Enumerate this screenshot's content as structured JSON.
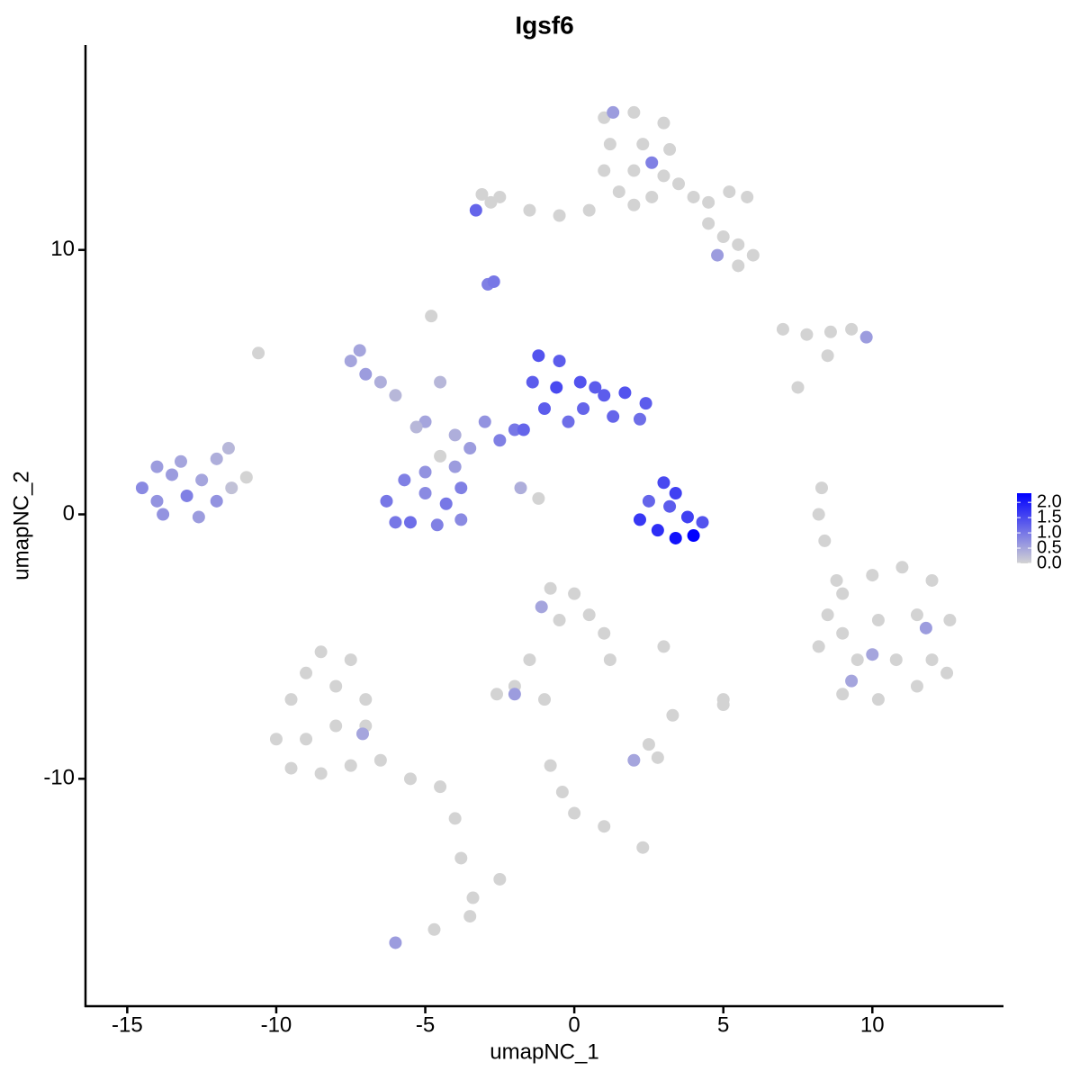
{
  "chart_data": {
    "type": "scatter",
    "title": "Igsf6",
    "x_label": "umapNC_1",
    "y_label": "umapNC_2",
    "xlim": [
      -16.4,
      14.4
    ],
    "ylim": [
      -18.6,
      17.75
    ],
    "xticks": [
      -15,
      -10,
      -5,
      0,
      5,
      10
    ],
    "yticks": [
      -10,
      0,
      10
    ],
    "color_low": "#d3d3d3",
    "color_high": "#0000ff",
    "color_lim": [
      0,
      2.3
    ],
    "colorbar_ticks": [
      {
        "value": 0,
        "label": "0.0"
      },
      {
        "value": 0.5,
        "label": "0.5"
      },
      {
        "value": 1,
        "label": "1.0"
      },
      {
        "value": 1.5,
        "label": "1.5"
      },
      {
        "value": 2,
        "label": "2.0"
      }
    ],
    "points": [
      {
        "x": 1,
        "y": 15,
        "expression": 0
      },
      {
        "x": 2,
        "y": 15.2,
        "expression": 0
      },
      {
        "x": 3,
        "y": 14.8,
        "expression": 0
      },
      {
        "x": 1.2,
        "y": 14,
        "expression": 0
      },
      {
        "x": 2.3,
        "y": 14,
        "expression": 0
      },
      {
        "x": 3.2,
        "y": 13.8,
        "expression": 0
      },
      {
        "x": 1,
        "y": 13,
        "expression": 0
      },
      {
        "x": 2,
        "y": 13,
        "expression": 0
      },
      {
        "x": 3,
        "y": 12.8,
        "expression": 0
      },
      {
        "x": 1.5,
        "y": 12.2,
        "expression": 0
      },
      {
        "x": 2.6,
        "y": 12,
        "expression": 0
      },
      {
        "x": 3.5,
        "y": 12.5,
        "expression": 0
      },
      {
        "x": 4,
        "y": 12,
        "expression": 0
      },
      {
        "x": 4.5,
        "y": 11.8,
        "expression": 0
      },
      {
        "x": 5.2,
        "y": 12.2,
        "expression": 0
      },
      {
        "x": 5.8,
        "y": 12,
        "expression": 0
      },
      {
        "x": 4.5,
        "y": 11,
        "expression": 0
      },
      {
        "x": 5,
        "y": 10.5,
        "expression": 0
      },
      {
        "x": 5.5,
        "y": 10.2,
        "expression": 0
      },
      {
        "x": 6,
        "y": 9.8,
        "expression": 0
      },
      {
        "x": 5.5,
        "y": 9.4,
        "expression": 0
      },
      {
        "x": 0.5,
        "y": 11.5,
        "expression": 0
      },
      {
        "x": -0.5,
        "y": 11.3,
        "expression": 0
      },
      {
        "x": -1.5,
        "y": 11.5,
        "expression": 0
      },
      {
        "x": -2.5,
        "y": 12,
        "expression": 0
      },
      {
        "x": -2.8,
        "y": 11.8,
        "expression": 0
      },
      {
        "x": -3.1,
        "y": 12.1,
        "expression": 0
      },
      {
        "x": 2,
        "y": 11.7,
        "expression": 0
      },
      {
        "x": 1.3,
        "y": 15.2,
        "expression": 0.6
      },
      {
        "x": 2.6,
        "y": 13.3,
        "expression": 0.9
      },
      {
        "x": 4.8,
        "y": 9.8,
        "expression": 0.6
      },
      {
        "x": -3.3,
        "y": 11.5,
        "expression": 1.2
      },
      {
        "x": -2.9,
        "y": 8.7,
        "expression": 0.9
      },
      {
        "x": -2.7,
        "y": 8.8,
        "expression": 1
      },
      {
        "x": 7,
        "y": 7,
        "expression": 0
      },
      {
        "x": 7.8,
        "y": 6.8,
        "expression": 0
      },
      {
        "x": 8.6,
        "y": 6.9,
        "expression": 0
      },
      {
        "x": 9.3,
        "y": 7,
        "expression": 0
      },
      {
        "x": 9.8,
        "y": 6.7,
        "expression": 0.6
      },
      {
        "x": 8.5,
        "y": 6,
        "expression": 0
      },
      {
        "x": 7.5,
        "y": 4.8,
        "expression": 0
      },
      {
        "x": 9,
        "y": -3,
        "expression": 0
      },
      {
        "x": 10,
        "y": -2.3,
        "expression": 0
      },
      {
        "x": 11,
        "y": -2,
        "expression": 0
      },
      {
        "x": 12,
        "y": -2.5,
        "expression": 0
      },
      {
        "x": 9,
        "y": -4.5,
        "expression": 0
      },
      {
        "x": 10.2,
        "y": -4,
        "expression": 0
      },
      {
        "x": 11.5,
        "y": -3.8,
        "expression": 0
      },
      {
        "x": 12.6,
        "y": -4,
        "expression": 0
      },
      {
        "x": 8.2,
        "y": -5,
        "expression": 0
      },
      {
        "x": 9.5,
        "y": -5.5,
        "expression": 0
      },
      {
        "x": 10.8,
        "y": -5.5,
        "expression": 0
      },
      {
        "x": 12,
        "y": -5.5,
        "expression": 0
      },
      {
        "x": 9,
        "y": -6.8,
        "expression": 0
      },
      {
        "x": 10.2,
        "y": -7,
        "expression": 0
      },
      {
        "x": 11.5,
        "y": -6.5,
        "expression": 0
      },
      {
        "x": 12.5,
        "y": -6,
        "expression": 0
      },
      {
        "x": 8.5,
        "y": -3.8,
        "expression": 0
      },
      {
        "x": 8.3,
        "y": 1,
        "expression": 0
      },
      {
        "x": 8.2,
        "y": 0,
        "expression": 0
      },
      {
        "x": 8.4,
        "y": -1,
        "expression": 0
      },
      {
        "x": 8.8,
        "y": -2.5,
        "expression": 0
      },
      {
        "x": 11.8,
        "y": -4.3,
        "expression": 0.6
      },
      {
        "x": 10,
        "y": -5.3,
        "expression": 0.5
      },
      {
        "x": 9.3,
        "y": -6.3,
        "expression": 0.5
      },
      {
        "x": -0.8,
        "y": -2.8,
        "expression": 0
      },
      {
        "x": 0,
        "y": -3,
        "expression": 0
      },
      {
        "x": 0.5,
        "y": -3.8,
        "expression": 0
      },
      {
        "x": 1,
        "y": -4.5,
        "expression": 0
      },
      {
        "x": 1.2,
        "y": -5.5,
        "expression": 0
      },
      {
        "x": -0.5,
        "y": -4,
        "expression": 0
      },
      {
        "x": -1.5,
        "y": -5.5,
        "expression": 0
      },
      {
        "x": -2,
        "y": -6.5,
        "expression": 0
      },
      {
        "x": -2.6,
        "y": -6.8,
        "expression": 0
      },
      {
        "x": 3,
        "y": -5,
        "expression": 0
      },
      {
        "x": 5,
        "y": -7,
        "expression": 0
      },
      {
        "x": -1,
        "y": -7,
        "expression": 0
      },
      {
        "x": -1.1,
        "y": -3.5,
        "expression": 0.5
      },
      {
        "x": -2,
        "y": -6.8,
        "expression": 0.6
      },
      {
        "x": 2.8,
        "y": -9.2,
        "expression": 0
      },
      {
        "x": 2.5,
        "y": -8.7,
        "expression": 0
      },
      {
        "x": 3.3,
        "y": -7.6,
        "expression": 0
      },
      {
        "x": 2,
        "y": -9.3,
        "expression": 0.5
      },
      {
        "x": -0.8,
        "y": -9.5,
        "expression": 0
      },
      {
        "x": -0.4,
        "y": -10.5,
        "expression": 0
      },
      {
        "x": 0,
        "y": -11.3,
        "expression": 0
      },
      {
        "x": 1,
        "y": -11.8,
        "expression": 0
      },
      {
        "x": 2.3,
        "y": -12.6,
        "expression": 0
      },
      {
        "x": 5,
        "y": -7.2,
        "expression": 0
      },
      {
        "x": -10,
        "y": -8.5,
        "expression": 0
      },
      {
        "x": -9.5,
        "y": -7,
        "expression": 0
      },
      {
        "x": -9,
        "y": -6,
        "expression": 0
      },
      {
        "x": -8.5,
        "y": -5.2,
        "expression": 0
      },
      {
        "x": -8,
        "y": -6.5,
        "expression": 0
      },
      {
        "x": -7.5,
        "y": -5.5,
        "expression": 0
      },
      {
        "x": -9,
        "y": -8.5,
        "expression": 0
      },
      {
        "x": -8,
        "y": -8,
        "expression": 0
      },
      {
        "x": -7,
        "y": -8,
        "expression": 0
      },
      {
        "x": -9.5,
        "y": -9.6,
        "expression": 0
      },
      {
        "x": -8.5,
        "y": -9.8,
        "expression": 0
      },
      {
        "x": -7.5,
        "y": -9.5,
        "expression": 0
      },
      {
        "x": -6.5,
        "y": -9.3,
        "expression": 0
      },
      {
        "x": -5.5,
        "y": -10,
        "expression": 0
      },
      {
        "x": -4.5,
        "y": -10.3,
        "expression": 0
      },
      {
        "x": -7,
        "y": -7,
        "expression": 0
      },
      {
        "x": -4,
        "y": -11.5,
        "expression": 0
      },
      {
        "x": -3.8,
        "y": -13,
        "expression": 0
      },
      {
        "x": -3.4,
        "y": -14.5,
        "expression": 0
      },
      {
        "x": -3.5,
        "y": -15.2,
        "expression": 0
      },
      {
        "x": -4.7,
        "y": -15.7,
        "expression": 0
      },
      {
        "x": -10.6,
        "y": 6.1,
        "expression": 0
      },
      {
        "x": -2.5,
        "y": -13.8,
        "expression": 0
      },
      {
        "x": -7.1,
        "y": -8.3,
        "expression": 0.5
      },
      {
        "x": -6,
        "y": -16.2,
        "expression": 0.6
      },
      {
        "x": -11,
        "y": 1.4,
        "expression": 0
      },
      {
        "x": -4.5,
        "y": 2.2,
        "expression": 0
      },
      {
        "x": -4.8,
        "y": 7.5,
        "expression": 0
      },
      {
        "x": -1.2,
        "y": 0.6,
        "expression": 0
      },
      {
        "x": -14.5,
        "y": 1,
        "expression": 0.8
      },
      {
        "x": -14,
        "y": 0.5,
        "expression": 0.7
      },
      {
        "x": -13.5,
        "y": 1.5,
        "expression": 0.6
      },
      {
        "x": -13,
        "y": 0.7,
        "expression": 0.9
      },
      {
        "x": -12.5,
        "y": 1.3,
        "expression": 0.5
      },
      {
        "x": -12,
        "y": 0.5,
        "expression": 0.7
      },
      {
        "x": -13.2,
        "y": 2,
        "expression": 0.5
      },
      {
        "x": -12,
        "y": 2.1,
        "expression": 0.4
      },
      {
        "x": -11.6,
        "y": 2.5,
        "expression": 0.3
      },
      {
        "x": -14,
        "y": 1.8,
        "expression": 0.6
      },
      {
        "x": -12.6,
        "y": -0.1,
        "expression": 0.6
      },
      {
        "x": -13.8,
        "y": 0,
        "expression": 0.7
      },
      {
        "x": -11.5,
        "y": 1,
        "expression": 0.2
      },
      {
        "x": -7.5,
        "y": 5.8,
        "expression": 0.5
      },
      {
        "x": -7,
        "y": 5.3,
        "expression": 0.6
      },
      {
        "x": -6.5,
        "y": 5,
        "expression": 0.4
      },
      {
        "x": -6,
        "y": 4.5,
        "expression": 0.3
      },
      {
        "x": -7.2,
        "y": 6.2,
        "expression": 0.5
      },
      {
        "x": -5,
        "y": 3.5,
        "expression": 0.5
      },
      {
        "x": -4,
        "y": 3,
        "expression": 0.4
      },
      {
        "x": -3,
        "y": 3.5,
        "expression": 0.7
      },
      {
        "x": -3.5,
        "y": 2.5,
        "expression": 0.6
      },
      {
        "x": -2.5,
        "y": 2.8,
        "expression": 0.9
      },
      {
        "x": -4.5,
        "y": 5,
        "expression": 0.3
      },
      {
        "x": -5.3,
        "y": 3.3,
        "expression": 0.3
      },
      {
        "x": -2,
        "y": 3.2,
        "expression": 1
      },
      {
        "x": -1.8,
        "y": 1,
        "expression": 0.4
      },
      {
        "x": -6.3,
        "y": 0.5,
        "expression": 1
      },
      {
        "x": -5.7,
        "y": 1.3,
        "expression": 0.9
      },
      {
        "x": -5,
        "y": 0.8,
        "expression": 0.8
      },
      {
        "x": -4.3,
        "y": 0.4,
        "expression": 1
      },
      {
        "x": -3.8,
        "y": 1,
        "expression": 0.9
      },
      {
        "x": -5.5,
        "y": -0.3,
        "expression": 1.1
      },
      {
        "x": -4.6,
        "y": -0.4,
        "expression": 0.9
      },
      {
        "x": -3.8,
        "y": -0.2,
        "expression": 0.8
      },
      {
        "x": -6,
        "y": -0.3,
        "expression": 1
      },
      {
        "x": -4,
        "y": 1.8,
        "expression": 0.6
      },
      {
        "x": -5,
        "y": 1.6,
        "expression": 0.7
      },
      {
        "x": -1.2,
        "y": 6,
        "expression": 1.4
      },
      {
        "x": -0.5,
        "y": 5.8,
        "expression": 1.3
      },
      {
        "x": -1.4,
        "y": 5,
        "expression": 1.3
      },
      {
        "x": -0.6,
        "y": 4.8,
        "expression": 1.5
      },
      {
        "x": 0.2,
        "y": 5,
        "expression": 1.4
      },
      {
        "x": -1,
        "y": 4,
        "expression": 1.3
      },
      {
        "x": 0.3,
        "y": 4,
        "expression": 1.2
      },
      {
        "x": 1,
        "y": 4.5,
        "expression": 1.3
      },
      {
        "x": 1.7,
        "y": 4.6,
        "expression": 1.4
      },
      {
        "x": 2.4,
        "y": 4.2,
        "expression": 1.3
      },
      {
        "x": 1.3,
        "y": 3.7,
        "expression": 1.2
      },
      {
        "x": 2.2,
        "y": 3.6,
        "expression": 1.1
      },
      {
        "x": -0.2,
        "y": 3.5,
        "expression": 1.1
      },
      {
        "x": -1.7,
        "y": 3.2,
        "expression": 1.2
      },
      {
        "x": 0.7,
        "y": 4.8,
        "expression": 1.3
      },
      {
        "x": 3,
        "y": 1.2,
        "expression": 1.5
      },
      {
        "x": 3.4,
        "y": 0.8,
        "expression": 1.6
      },
      {
        "x": 3.2,
        "y": 0.3,
        "expression": 1.3
      },
      {
        "x": 2.2,
        "y": -0.2,
        "expression": 1.7
      },
      {
        "x": 2.8,
        "y": -0.6,
        "expression": 1.8
      },
      {
        "x": 3.4,
        "y": -0.9,
        "expression": 2.1
      },
      {
        "x": 4,
        "y": -0.8,
        "expression": 2.3
      },
      {
        "x": 4.3,
        "y": -0.3,
        "expression": 1.4
      },
      {
        "x": 3.8,
        "y": -0.1,
        "expression": 1.6
      },
      {
        "x": 2.5,
        "y": 0.5,
        "expression": 1.2
      }
    ]
  }
}
